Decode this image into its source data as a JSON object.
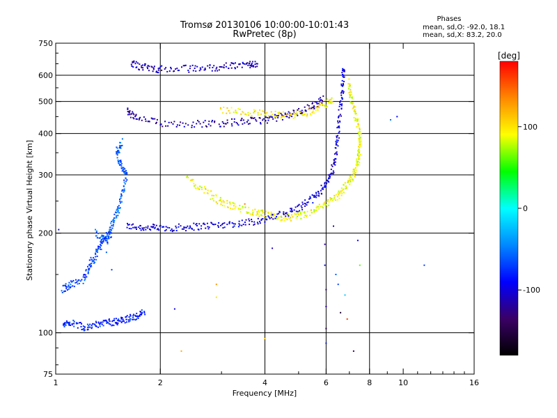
{
  "chart_data": {
    "type": "scatter",
    "title": "Tromsø 20130106 10:00:00-10:01:43",
    "subtitle": "RwPretec (8p)",
    "xlabel": "Frequency [MHz]",
    "ylabel": "Stationary phase Virtual Height [km]",
    "x_scale": "log",
    "y_scale": "log",
    "xlim": [
      1,
      16
    ],
    "ylim": [
      75,
      750
    ],
    "x_ticks": [
      1,
      2,
      4,
      6,
      8,
      10,
      16
    ],
    "y_ticks": [
      75,
      100,
      200,
      300,
      400,
      500,
      600,
      750
    ],
    "x_gridlines": [
      2,
      4,
      6,
      8
    ],
    "y_gridlines": [
      100,
      200,
      300,
      400,
      500,
      600
    ],
    "grid": true,
    "colorbar": {
      "label": "[deg]",
      "range": [
        -180,
        180
      ],
      "ticks": [
        100,
        0,
        -100
      ],
      "colors": [
        "#000000",
        "#3a0066",
        "#0000ff",
        "#0088ff",
        "#00ffff",
        "#00ff00",
        "#ffff00",
        "#ff8800",
        "#ff0000"
      ]
    },
    "stats": {
      "heading": "Phases",
      "line_o": "mean, sd,O: -92.0, 18.1",
      "line_x": "mean, sd,X:  83.2, 20.0"
    },
    "traces": [
      {
        "name": "",
        "points": [
          [
            1.6,
            210
          ],
          [
            1.8,
            208
          ],
          [
            2.0,
            207
          ],
          [
            2.3,
            208
          ],
          [
            2.6,
            210
          ],
          [
            3.0,
            212
          ],
          [
            3.5,
            215
          ],
          [
            4.0,
            220
          ],
          [
            4.5,
            228
          ],
          [
            5.0,
            238
          ],
          [
            5.5,
            255
          ],
          [
            5.9,
            275
          ],
          [
            6.2,
            300
          ],
          [
            6.4,
            340
          ],
          [
            6.5,
            400
          ],
          [
            6.6,
            480
          ],
          [
            6.7,
            560
          ],
          [
            6.75,
            640
          ]
        ],
        "phase": -100
      },
      {
        "name": "",
        "points": [
          [
            1.6,
            470
          ],
          [
            1.7,
            445
          ],
          [
            2.0,
            430
          ],
          [
            2.5,
            428
          ],
          [
            3.0,
            430
          ],
          [
            3.5,
            435
          ],
          [
            4.0,
            440
          ],
          [
            4.5,
            450
          ],
          [
            5.0,
            465
          ],
          [
            5.5,
            485
          ],
          [
            5.9,
            510
          ]
        ],
        "phase": -115
      },
      {
        "name": "",
        "points": [
          [
            1.65,
            650
          ],
          [
            1.8,
            635
          ],
          [
            2.0,
            625
          ],
          [
            2.4,
            628
          ],
          [
            2.8,
            632
          ],
          [
            3.2,
            640
          ],
          [
            3.6,
            648
          ],
          [
            3.8,
            652
          ]
        ],
        "phase": -110
      },
      {
        "name": "",
        "points": [
          [
            2.4,
            290
          ],
          [
            2.7,
            268
          ],
          [
            3.0,
            248
          ],
          [
            3.3,
            240
          ],
          [
            3.7,
            232
          ],
          [
            4.0,
            228
          ],
          [
            4.5,
            222
          ],
          [
            5.0,
            225
          ],
          [
            5.5,
            232
          ],
          [
            6.0,
            245
          ],
          [
            6.5,
            260
          ],
          [
            6.9,
            280
          ],
          [
            7.2,
            300
          ],
          [
            7.4,
            330
          ],
          [
            7.5,
            360
          ],
          [
            7.5,
            400
          ],
          [
            7.3,
            450
          ],
          [
            7.1,
            510
          ],
          [
            6.95,
            580
          ]
        ],
        "phase": 90
      },
      {
        "name": "",
        "points": [
          [
            3.0,
            470
          ],
          [
            3.6,
            465
          ],
          [
            4.2,
            455
          ],
          [
            4.8,
            455
          ],
          [
            5.4,
            465
          ],
          [
            5.9,
            490
          ],
          [
            6.3,
            505
          ]
        ],
        "phase": 95
      },
      {
        "name": "",
        "points": [
          [
            1.3,
            200
          ],
          [
            1.4,
            190
          ],
          [
            1.45,
            210
          ],
          [
            1.5,
            230
          ],
          [
            1.55,
            260
          ],
          [
            1.6,
            300
          ],
          [
            1.55,
            320
          ],
          [
            1.5,
            350
          ],
          [
            1.55,
            380
          ]
        ],
        "phase": -60
      },
      {
        "name": "",
        "points": [
          [
            1.05,
            105
          ],
          [
            1.1,
            108
          ],
          [
            1.2,
            104
          ],
          [
            1.3,
            106
          ],
          [
            1.4,
            107
          ],
          [
            1.5,
            108
          ],
          [
            1.6,
            110
          ],
          [
            1.7,
            112
          ],
          [
            1.8,
            115
          ]
        ],
        "phase": -80
      },
      {
        "name": "",
        "points": [
          [
            1.05,
            135
          ],
          [
            1.1,
            140
          ],
          [
            1.2,
            145
          ],
          [
            1.25,
            160
          ],
          [
            1.3,
            170
          ],
          [
            1.35,
            185
          ],
          [
            1.4,
            195
          ],
          [
            1.45,
            200
          ]
        ],
        "phase": -70
      }
    ],
    "isolated_points": [
      [
        1.02,
        205,
        -95
      ],
      [
        1.4,
        175,
        -60
      ],
      [
        1.45,
        155,
        -70
      ],
      [
        1.8,
        115,
        -90
      ],
      [
        2.2,
        118,
        -100
      ],
      [
        2.3,
        88,
        120
      ],
      [
        2.9,
        140,
        130
      ],
      [
        2.9,
        128,
        100
      ],
      [
        3.5,
        245,
        140
      ],
      [
        4.0,
        96,
        110
      ],
      [
        4.05,
        220,
        -120
      ],
      [
        4.2,
        180,
        -110
      ],
      [
        5.95,
        185,
        -120
      ],
      [
        5.95,
        160,
        -100
      ],
      [
        6.0,
        135,
        -130
      ],
      [
        6.0,
        120,
        -120
      ],
      [
        6.0,
        103,
        -150
      ],
      [
        6.0,
        93,
        -80
      ],
      [
        6.3,
        210,
        -120
      ],
      [
        6.4,
        150,
        -60
      ],
      [
        6.5,
        140,
        -70
      ],
      [
        6.6,
        115,
        -160
      ],
      [
        6.8,
        130,
        -20
      ],
      [
        6.9,
        110,
        160
      ],
      [
        7.2,
        88,
        -130
      ],
      [
        7.4,
        190,
        -100
      ],
      [
        7.5,
        160,
        60
      ],
      [
        9.2,
        440,
        -50
      ],
      [
        9.6,
        450,
        -90
      ],
      [
        11.5,
        160,
        -70
      ]
    ]
  }
}
